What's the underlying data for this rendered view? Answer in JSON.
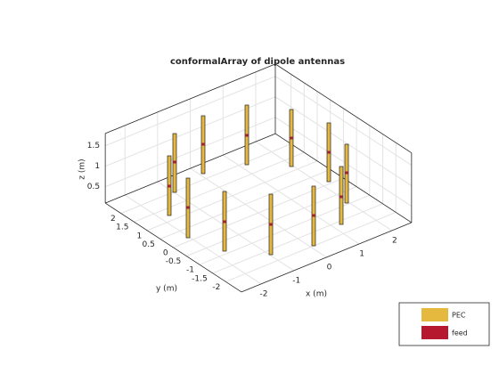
{
  "title": "conformalArray of dipole antennas",
  "axes": {
    "x": {
      "label": "x (m)",
      "ticks": [
        -2,
        -1,
        0,
        1,
        2
      ]
    },
    "y": {
      "label": "y (m)",
      "ticks": [
        -2,
        -1.5,
        -1,
        -0.5,
        0,
        0.5,
        1,
        1.5,
        2
      ]
    },
    "z": {
      "label": "z (m)",
      "ticks": [
        0.5,
        1,
        1.5
      ]
    }
  },
  "legend": [
    {
      "name": "PEC",
      "color": "#e5b83e"
    },
    {
      "name": "feed",
      "color": "#b5182f"
    }
  ]
}
